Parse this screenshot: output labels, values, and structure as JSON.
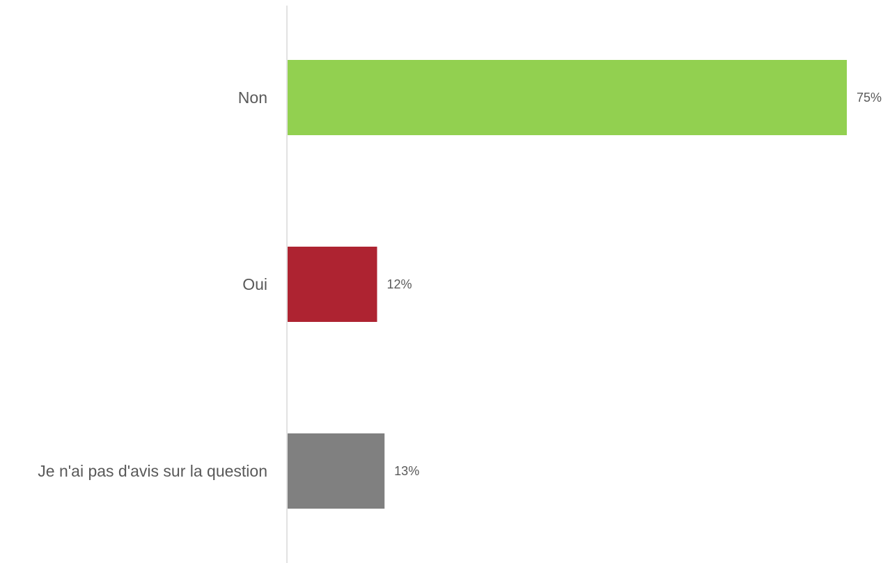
{
  "chart_data": {
    "type": "bar",
    "orientation": "horizontal",
    "categories": [
      "Non",
      "Oui",
      "Je n'ai pas d'avis sur la question"
    ],
    "values": [
      75,
      12,
      13
    ],
    "value_labels": [
      "75%",
      "12%",
      "13%"
    ],
    "colors": [
      "#92d050",
      "#ae2331",
      "#808080"
    ],
    "axis_line_color": "#d9d9d9",
    "text_color": "#595959",
    "xlim": [
      0,
      75
    ],
    "grid": false,
    "legend": "none",
    "title": "",
    "xlabel": "",
    "ylabel": ""
  }
}
